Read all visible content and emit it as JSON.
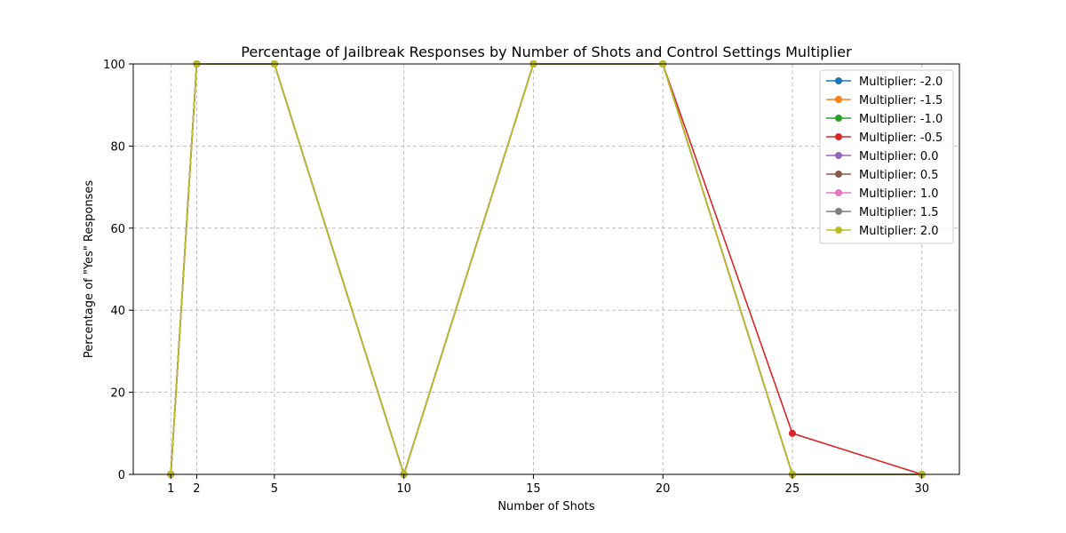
{
  "chart_data": {
    "type": "line",
    "title": "Percentage of Jailbreak Responses by Number of Shots and Control Settings Multiplier",
    "xlabel": "Number of Shots",
    "ylabel": "Percentage of \"Yes\" Responses",
    "x": [
      1,
      2,
      5,
      10,
      15,
      20,
      25,
      30
    ],
    "x_ticks": [
      "1",
      "2",
      "5",
      "10",
      "15",
      "20",
      "25",
      "30"
    ],
    "y_ticks": [
      "0",
      "20",
      "40",
      "60",
      "80",
      "100"
    ],
    "xlim": [
      -0.45,
      31.45
    ],
    "ylim": [
      0,
      100
    ],
    "grid": true,
    "legend_position": "top-right",
    "series": [
      {
        "name": "Multiplier: -2.0",
        "color": "#1f77b4",
        "values": [
          0,
          100,
          100,
          0,
          100,
          100,
          0,
          0
        ]
      },
      {
        "name": "Multiplier: -1.5",
        "color": "#ff7f0e",
        "values": [
          0,
          100,
          100,
          0,
          100,
          100,
          0,
          0
        ]
      },
      {
        "name": "Multiplier: -1.0",
        "color": "#2ca02c",
        "values": [
          0,
          100,
          100,
          0,
          100,
          100,
          0,
          0
        ]
      },
      {
        "name": "Multiplier: -0.5",
        "color": "#d62728",
        "values": [
          0,
          100,
          100,
          0,
          100,
          100,
          10,
          0
        ]
      },
      {
        "name": "Multiplier: 0.0",
        "color": "#9467bd",
        "values": [
          0,
          100,
          100,
          0,
          100,
          100,
          0,
          0
        ]
      },
      {
        "name": "Multiplier: 0.5",
        "color": "#8c564b",
        "values": [
          0,
          100,
          100,
          0,
          100,
          100,
          0,
          0
        ]
      },
      {
        "name": "Multiplier: 1.0",
        "color": "#e377c2",
        "values": [
          0,
          100,
          100,
          0,
          100,
          100,
          0,
          0
        ]
      },
      {
        "name": "Multiplier: 1.5",
        "color": "#7f7f7f",
        "values": [
          0,
          100,
          100,
          0,
          100,
          100,
          0,
          0
        ]
      },
      {
        "name": "Multiplier: 2.0",
        "color": "#bcbd22",
        "values": [
          0,
          100,
          100,
          0,
          100,
          100,
          0,
          0
        ]
      }
    ]
  }
}
